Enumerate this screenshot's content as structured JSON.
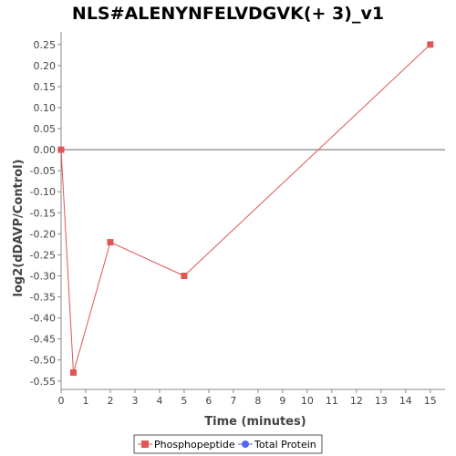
{
  "chart_data": {
    "type": "line",
    "title": "NLS#ALENYNFELVDGVK(+ 3)_v1",
    "xlabel": "Time (minutes)",
    "ylabel": "log2(dDAVP/Control)",
    "xlim": [
      0,
      15.6
    ],
    "ylim": [
      -0.57,
      0.28
    ],
    "xticks": [
      0,
      1,
      2,
      3,
      4,
      5,
      6,
      7,
      8,
      9,
      10,
      11,
      12,
      13,
      14,
      15
    ],
    "yticks": [
      0.25,
      0.2,
      0.15,
      0.1,
      0.05,
      0.0,
      -0.05,
      -0.1,
      -0.15,
      -0.2,
      -0.25,
      -0.3,
      -0.35,
      -0.4,
      -0.45,
      -0.5,
      -0.55
    ],
    "zero_line": 0,
    "grid": false,
    "legend_position": "bottom",
    "series": [
      {
        "name": "Phosphopeptide",
        "color": "#e05555",
        "marker": "square",
        "points": [
          {
            "x": 0,
            "y": 0.0
          },
          {
            "x": 0.5,
            "y": -0.53
          },
          {
            "x": 2,
            "y": -0.22
          },
          {
            "x": 5,
            "y": -0.3
          },
          {
            "x": 15,
            "y": 0.25
          }
        ]
      },
      {
        "name": "Total Protein",
        "color": "#5566ee",
        "marker": "circle",
        "points": []
      }
    ]
  }
}
